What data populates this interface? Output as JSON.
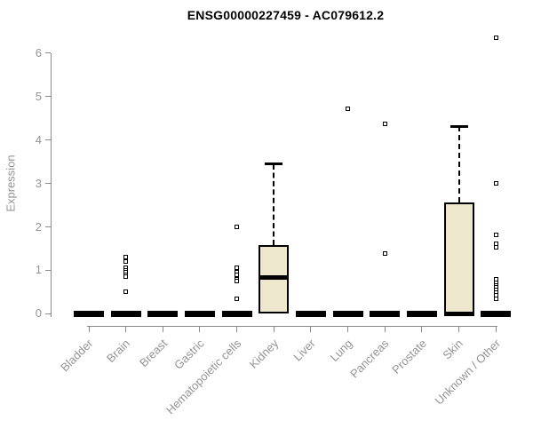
{
  "page": {
    "background": "#ffffff"
  },
  "chart_data": {
    "type": "boxplot",
    "title": "ENSG00000227459 - AC079612.2",
    "ylabel": "Expression",
    "xlabel": "",
    "ylim": [
      0,
      6.5
    ],
    "yticks": [
      0,
      1,
      2,
      3,
      4,
      5,
      6
    ],
    "categories": [
      "Bladder",
      "Brain",
      "Breast",
      "Gastric",
      "Hematopoietic cells",
      "Kidney",
      "Liver",
      "Lung",
      "Pancreas",
      "Prostate",
      "Skin",
      "Unknown / Other"
    ],
    "series": [
      {
        "category": "Bladder",
        "q1": 0,
        "median": 0,
        "q3": 0,
        "whisker_low": 0,
        "whisker_high": 0,
        "outliers": []
      },
      {
        "category": "Brain",
        "q1": 0,
        "median": 0,
        "q3": 0,
        "whisker_low": 0,
        "whisker_high": 0,
        "outliers": [
          1.3,
          1.2,
          1.05,
          1.0,
          0.95,
          0.9,
          0.85,
          0.5
        ]
      },
      {
        "category": "Breast",
        "q1": 0,
        "median": 0,
        "q3": 0,
        "whisker_low": 0,
        "whisker_high": 0,
        "outliers": []
      },
      {
        "category": "Gastric",
        "q1": 0,
        "median": 0,
        "q3": 0,
        "whisker_low": 0,
        "whisker_high": 0,
        "outliers": []
      },
      {
        "category": "Hematopoietic cells",
        "q1": 0,
        "median": 0,
        "q3": 0,
        "whisker_low": 0,
        "whisker_high": 0,
        "outliers": [
          2.0,
          1.05,
          0.95,
          0.9,
          0.8,
          0.75,
          0.35
        ]
      },
      {
        "category": "Kidney",
        "q1": 0,
        "median": 0.83,
        "q3": 1.58,
        "whisker_low": 0,
        "whisker_high": 3.45,
        "outliers": []
      },
      {
        "category": "Liver",
        "q1": 0,
        "median": 0,
        "q3": 0,
        "whisker_low": 0,
        "whisker_high": 0,
        "outliers": []
      },
      {
        "category": "Lung",
        "q1": 0,
        "median": 0,
        "q3": 0,
        "whisker_low": 0,
        "whisker_high": 0,
        "outliers": [
          4.72
        ]
      },
      {
        "category": "Pancreas",
        "q1": 0,
        "median": 0,
        "q3": 0,
        "whisker_low": 0,
        "whisker_high": 0,
        "outliers": [
          4.38,
          1.38
        ]
      },
      {
        "category": "Prostate",
        "q1": 0,
        "median": 0,
        "q3": 0,
        "whisker_low": 0,
        "whisker_high": 0,
        "outliers": []
      },
      {
        "category": "Skin",
        "q1": 0,
        "median": 0,
        "q3": 2.56,
        "whisker_low": 0,
        "whisker_high": 4.32,
        "outliers": []
      },
      {
        "category": "Unknown / Other",
        "q1": 0,
        "median": 0,
        "q3": 0,
        "whisker_low": 0,
        "whisker_high": 0,
        "outliers": [
          6.35,
          3.0,
          1.82,
          1.62,
          1.52,
          0.8,
          0.72,
          0.66,
          0.6,
          0.54,
          0.48,
          0.42,
          0.35
        ]
      }
    ],
    "colors": {
      "box_fill": "#ece7cd",
      "box_border": "#000000",
      "median": "#000000",
      "outlier_fill": "#ffffff",
      "axis": "#8a8a8a",
      "tick_text": "#949494",
      "title_text": "#000000"
    },
    "layout_hints": {
      "grid": false,
      "legend": false,
      "x_label_rotation": 45,
      "y_axis_side": "left"
    }
  }
}
